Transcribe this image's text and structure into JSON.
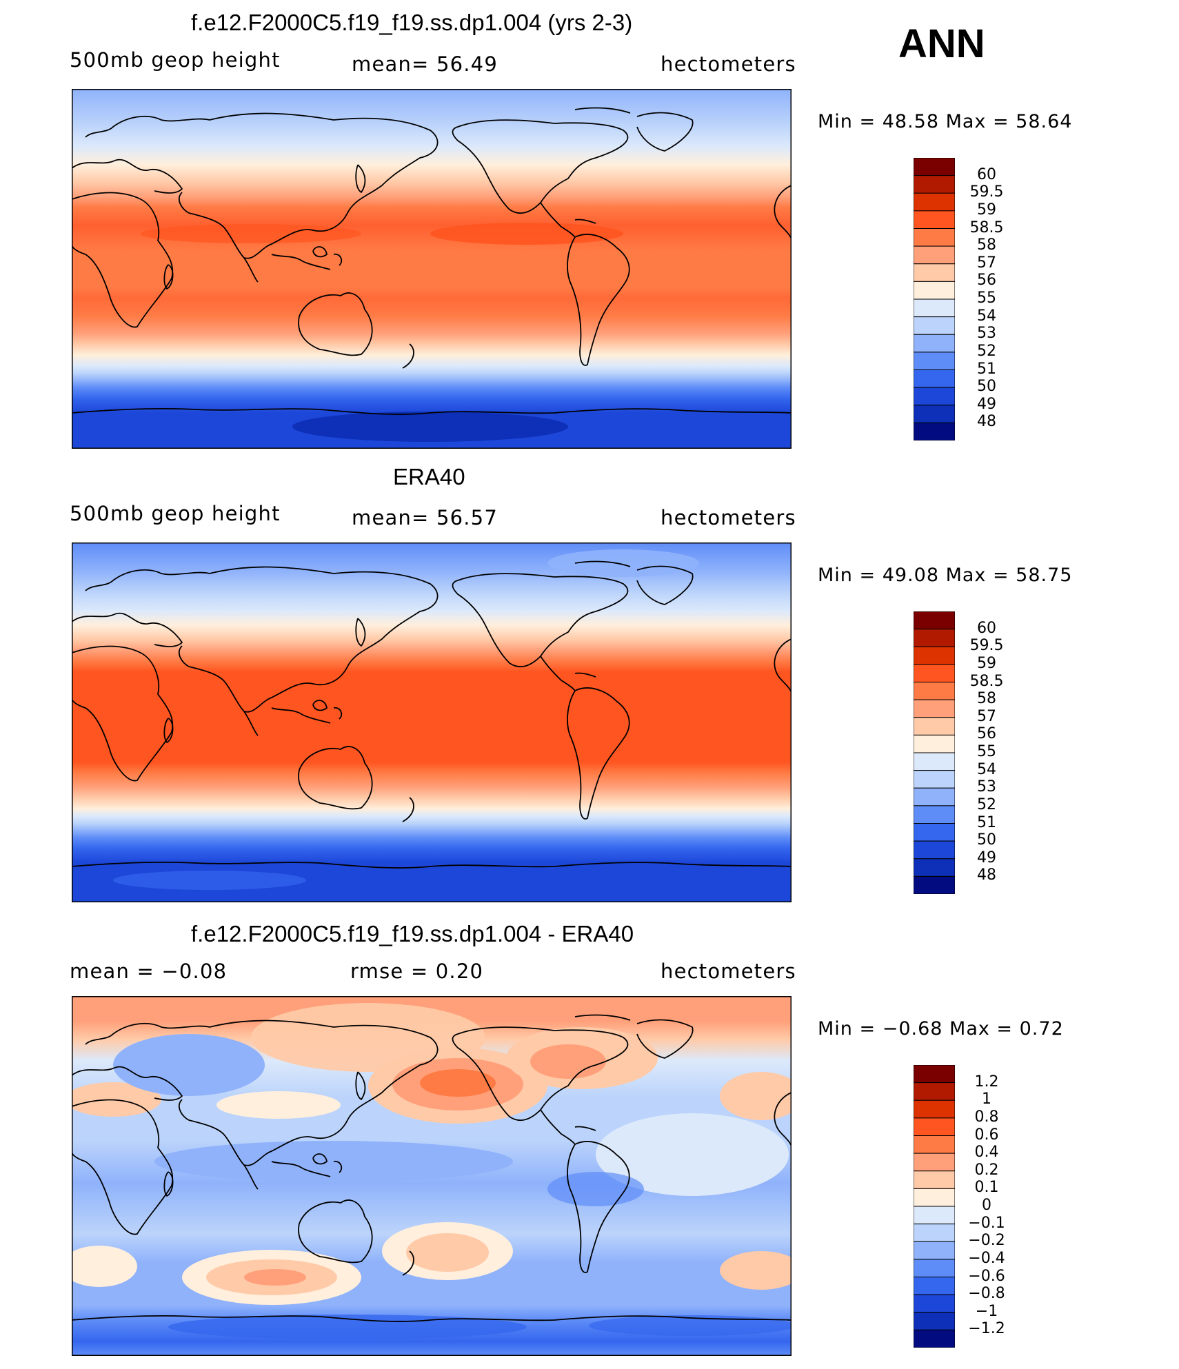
{
  "season": "ANN",
  "panels": [
    {
      "title": "f.e12.F2000C5.f19_f19.ss.dp1.004 (yrs 2-3)",
      "left_label": "500mb  geop  height",
      "mid_label": "mean=   56.49",
      "right_label": "hectometers",
      "min_max": "Min  =    48.58  Max  =    58.64",
      "colorbar": {
        "colors": [
          "#7a0000",
          "#b21a00",
          "#dd3300",
          "#ff5520",
          "#ff7b45",
          "#ffa07a",
          "#ffcaa8",
          "#ffefdc",
          "#dce9fb",
          "#bcd4fb",
          "#8fb2fb",
          "#5f8df8",
          "#3466ee",
          "#1d47d9",
          "#0e30b8",
          "#020c80"
        ],
        "labels": [
          "60",
          "59.5",
          "59",
          "58.5",
          "58",
          "57",
          "56",
          "55",
          "54",
          "53",
          "52",
          "51",
          "50",
          "49",
          "48"
        ]
      }
    },
    {
      "title": "ERA40",
      "left_label": "500mb  geop  height",
      "mid_label": "mean=   56.57",
      "right_label": "hectometers",
      "min_max": "Min  =    49.08  Max  =    58.75",
      "colorbar": {
        "colors": [
          "#7a0000",
          "#b21a00",
          "#dd3300",
          "#ff5520",
          "#ff7b45",
          "#ffa07a",
          "#ffcaa8",
          "#ffefdc",
          "#dce9fb",
          "#bcd4fb",
          "#8fb2fb",
          "#5f8df8",
          "#3466ee",
          "#1d47d9",
          "#0e30b8",
          "#020c80"
        ],
        "labels": [
          "60",
          "59.5",
          "59",
          "58.5",
          "58",
          "57",
          "56",
          "55",
          "54",
          "53",
          "52",
          "51",
          "50",
          "49",
          "48"
        ]
      }
    },
    {
      "title": "f.e12.F2000C5.f19_f19.ss.dp1.004 - ERA40",
      "left_label": "mean  =    −0.08",
      "mid_label": "rmse  =     0.20",
      "right_label": "hectometers",
      "min_max": "Min  =   −0.68  Max  =     0.72",
      "colorbar": {
        "colors": [
          "#7a0000",
          "#b21a00",
          "#dd3300",
          "#ff5520",
          "#ff7b45",
          "#ffa07a",
          "#ffcaa8",
          "#ffefdc",
          "#dce9fb",
          "#bcd4fb",
          "#8fb2fb",
          "#5f8df8",
          "#3466ee",
          "#1d47d9",
          "#0e30b8",
          "#020c80"
        ],
        "labels": [
          "1.2",
          "1",
          "0.8",
          "0.6",
          "0.4",
          "0.2",
          "0.1",
          "0",
          "−0.1",
          "−0.2",
          "−0.4",
          "−0.6",
          "−0.8",
          "−1",
          "−1.2"
        ]
      }
    }
  ]
}
